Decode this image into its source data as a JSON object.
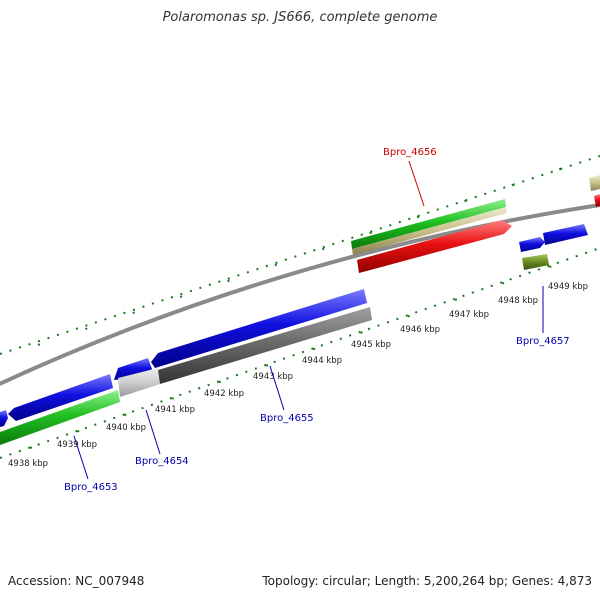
{
  "title": "Polaromonas sp. JS666, complete genome",
  "footer": {
    "accession": "Accession: NC_007948",
    "summary": "Topology: circular; Length: 5,200,264 bp; Genes: 4,873"
  },
  "colors": {
    "forward_cds": "#1010e0",
    "reverse_cds": "#e81010",
    "green_feature": "#22c022",
    "tan_feature": "#c8c088",
    "dark_gray_feature": "#666666",
    "light_gray_feature": "#c8c8c8",
    "olive_feature": "#6a8a20",
    "backbone": "#8a8a8a",
    "tick": "#1a7a1a",
    "highlight_label": "#cc0000",
    "gene_label": "#0000aa"
  },
  "scale_labels": [
    "4938 kbp",
    "4939 kbp",
    "4940 kbp",
    "4941 kbp",
    "4942 kbp",
    "4943 kbp",
    "4944 kbp",
    "4945 kbp",
    "4946 kbp",
    "4947 kbp",
    "4948 kbp",
    "4949 kbp"
  ],
  "gene_labels": [
    {
      "name": "Bpro_4656",
      "highlighted": true
    },
    {
      "name": "Bpro_4657",
      "highlighted": false
    },
    {
      "name": "Bpro_4655",
      "highlighted": false
    },
    {
      "name": "Bpro_4654",
      "highlighted": false
    },
    {
      "name": "Bpro_4653",
      "highlighted": false
    }
  ]
}
